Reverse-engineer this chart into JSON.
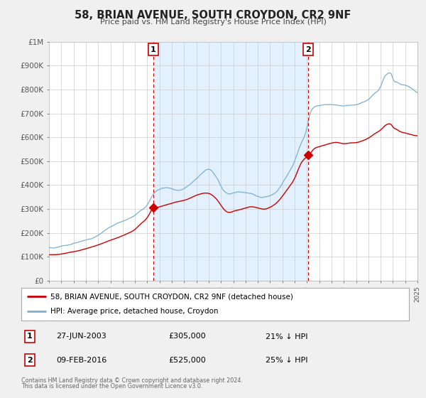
{
  "title": "58, BRIAN AVENUE, SOUTH CROYDON, CR2 9NF",
  "subtitle": "Price paid vs. HM Land Registry's House Price Index (HPI)",
  "background_color": "#f0f0f0",
  "plot_bg_color": "#ffffff",
  "grid_color": "#cccccc",
  "ylim": [
    0,
    1000000
  ],
  "yticks": [
    0,
    100000,
    200000,
    300000,
    400000,
    500000,
    600000,
    700000,
    800000,
    900000,
    1000000
  ],
  "ytick_labels": [
    "£0",
    "£100K",
    "£200K",
    "£300K",
    "£400K",
    "£500K",
    "£600K",
    "£700K",
    "£800K",
    "£900K",
    "£1M"
  ],
  "sale1_date_x": 2003.49,
  "sale1_price": 305000,
  "sale2_date_x": 2016.11,
  "sale2_price": 525000,
  "red_line_color": "#cc0000",
  "blue_line_color": "#7bafd4",
  "shade_color": "#ddeeff",
  "sale_marker_color": "#cc0000",
  "vline_color": "#cc0000",
  "legend_label_red": "58, BRIAN AVENUE, SOUTH CROYDON, CR2 9NF (detached house)",
  "legend_label_blue": "HPI: Average price, detached house, Croydon",
  "table_row1": [
    "1",
    "27-JUN-2003",
    "£305,000",
    "21% ↓ HPI"
  ],
  "table_row2": [
    "2",
    "09-FEB-2016",
    "£525,000",
    "25% ↓ HPI"
  ],
  "footer1": "Contains HM Land Registry data © Crown copyright and database right 2024.",
  "footer2": "This data is licensed under the Open Government Licence v3.0.",
  "xmin": 1995,
  "xmax": 2025
}
